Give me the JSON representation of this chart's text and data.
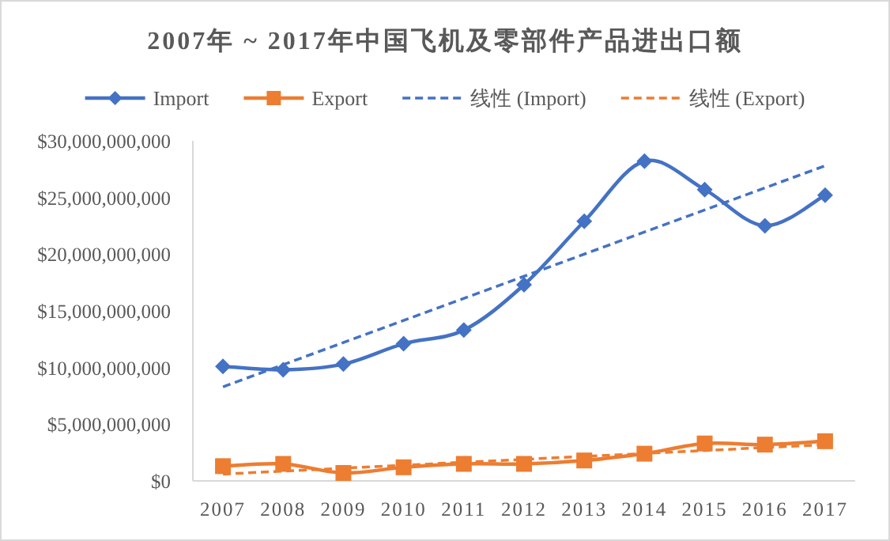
{
  "chart_data": {
    "type": "line",
    "title": "2007年 ~ 2017年中国飞机及零部件产品进出口额",
    "categories": [
      "2007",
      "2008",
      "2009",
      "2010",
      "2011",
      "2012",
      "2013",
      "2014",
      "2015",
      "2016",
      "2017"
    ],
    "series": [
      {
        "name": "Import",
        "color": "#4472c4",
        "marker": "diamond",
        "line_style": "solid",
        "values": [
          10100000000,
          9800000000,
          10300000000,
          12100000000,
          13300000000,
          17300000000,
          22900000000,
          28200000000,
          25700000000,
          22500000000,
          25200000000
        ]
      },
      {
        "name": "Export",
        "color": "#ed7d31",
        "marker": "square",
        "line_style": "solid",
        "values": [
          1300000000,
          1500000000,
          700000000,
          1200000000,
          1500000000,
          1500000000,
          1800000000,
          2400000000,
          3300000000,
          3200000000,
          3500000000
        ]
      },
      {
        "name": "线性 (Import)",
        "color": "#4472c4",
        "marker": "none",
        "line_style": "dashed",
        "values": [
          8300000000,
          null,
          null,
          null,
          null,
          null,
          null,
          null,
          null,
          null,
          27800000000
        ]
      },
      {
        "name": "线性 (Export)",
        "color": "#ed7d31",
        "marker": "none",
        "line_style": "dashed",
        "values": [
          600000000,
          null,
          null,
          null,
          null,
          null,
          null,
          null,
          null,
          null,
          3200000000
        ]
      }
    ],
    "ylim": [
      0,
      30000000000
    ],
    "yticks": [
      {
        "value": 0,
        "label": "$0"
      },
      {
        "value": 5000000000,
        "label": "$5,000,000,000"
      },
      {
        "value": 10000000000,
        "label": "$10,000,000,000"
      },
      {
        "value": 15000000000,
        "label": "$15,000,000,000"
      },
      {
        "value": 20000000000,
        "label": "$20,000,000,000"
      },
      {
        "value": 25000000000,
        "label": "$25,000,000,000"
      },
      {
        "value": 30000000000,
        "label": "$30,000,000,000"
      }
    ],
    "grid": false,
    "legend": "top"
  }
}
